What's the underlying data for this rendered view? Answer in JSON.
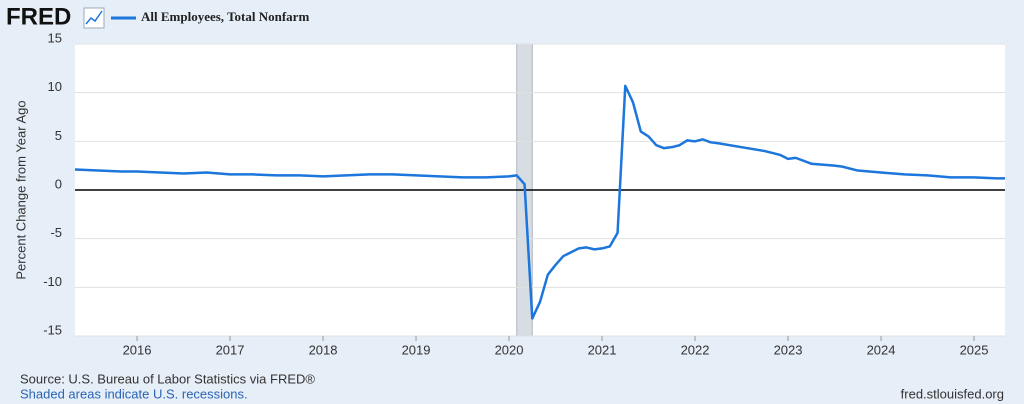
{
  "header": {
    "logo": "FRED"
  },
  "chart_data": {
    "type": "line",
    "y_label": "Percent Change from Year Ago",
    "x": [
      2015.333,
      2015.583,
      2015.833,
      2016.0,
      2016.25,
      2016.5,
      2016.75,
      2017.0,
      2017.25,
      2017.5,
      2017.75,
      2018.0,
      2018.25,
      2018.5,
      2018.75,
      2019.0,
      2019.25,
      2019.5,
      2019.75,
      2020.0,
      2020.083,
      2020.167,
      2020.25,
      2020.333,
      2020.417,
      2020.5,
      2020.583,
      2020.667,
      2020.75,
      2020.833,
      2020.917,
      2021.0,
      2021.083,
      2021.167,
      2021.25,
      2021.333,
      2021.417,
      2021.5,
      2021.583,
      2021.667,
      2021.75,
      2021.833,
      2021.917,
      2022.0,
      2022.083,
      2022.167,
      2022.25,
      2022.5,
      2022.75,
      2022.917,
      2023.0,
      2023.083,
      2023.25,
      2023.5,
      2023.583,
      2023.75,
      2024.0,
      2024.25,
      2024.5,
      2024.75,
      2025.0,
      2025.25,
      2025.333
    ],
    "series": [
      {
        "name": "All Employees, Total Nonfarm",
        "color": "#1c76dc",
        "values": [
          2.1,
          2.0,
          1.9,
          1.9,
          1.8,
          1.7,
          1.8,
          1.6,
          1.6,
          1.5,
          1.5,
          1.4,
          1.5,
          1.6,
          1.6,
          1.5,
          1.4,
          1.3,
          1.3,
          1.4,
          1.5,
          0.6,
          -13.2,
          -11.5,
          -8.7,
          -7.7,
          -6.8,
          -6.4,
          -6.0,
          -5.9,
          -6.1,
          -6.0,
          -5.8,
          -4.4,
          10.7,
          9.0,
          6.0,
          5.5,
          4.6,
          4.3,
          4.4,
          4.6,
          5.1,
          5.0,
          5.2,
          4.9,
          4.8,
          4.4,
          4.0,
          3.6,
          3.2,
          3.3,
          2.7,
          2.5,
          2.4,
          2.0,
          1.8,
          1.6,
          1.5,
          1.3,
          1.3,
          1.2,
          1.2
        ]
      }
    ],
    "xlim": [
      2015.333,
      2025.333
    ],
    "xticks": [
      2016,
      2017,
      2018,
      2019,
      2020,
      2021,
      2022,
      2023,
      2024,
      2025
    ],
    "ylim": [
      -15,
      15
    ],
    "yticks": [
      -15,
      -10,
      -5,
      0,
      5,
      10,
      15
    ],
    "grid": true,
    "recessions": [
      {
        "start": 2020.083,
        "end": 2020.25
      }
    ]
  },
  "footer": {
    "source": "Source: U.S. Bureau of Labor Statistics via FRED®",
    "note": "Shaded areas indicate U.S. recessions.",
    "url": "fred.stlouisfed.org"
  }
}
